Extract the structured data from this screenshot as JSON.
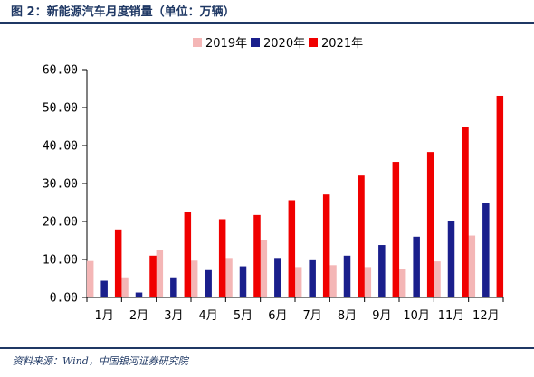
{
  "figure": {
    "title": "图 2：新能源汽车月度销量（单位：万辆）",
    "source": "资料来源：Wind，中国银河证券研究院"
  },
  "colors": {
    "accent": "#1f3864",
    "series": [
      "#f4b6b6",
      "#1a1f8c",
      "#f00000"
    ]
  },
  "chart_data": {
    "type": "bar",
    "title": "",
    "xlabel": "",
    "ylabel": "",
    "ylim": [
      0,
      60
    ],
    "yticks": [
      "0.00",
      "10.00",
      "20.00",
      "30.00",
      "40.00",
      "50.00",
      "60.00"
    ],
    "grid": false,
    "legend": "top",
    "categories": [
      "1月",
      "2月",
      "3月",
      "4月",
      "5月",
      "6月",
      "7月",
      "8月",
      "9月",
      "10月",
      "11月",
      "12月"
    ],
    "series": [
      {
        "name": "2019年",
        "values": [
          9.6,
          5.3,
          12.6,
          9.7,
          10.4,
          15.2,
          8.0,
          8.5,
          8.0,
          7.5,
          9.5,
          16.3
        ]
      },
      {
        "name": "2020年",
        "values": [
          4.4,
          1.3,
          5.3,
          7.2,
          8.2,
          10.4,
          9.8,
          11.0,
          13.8,
          16.0,
          20.0,
          24.8
        ]
      },
      {
        "name": "2021年",
        "values": [
          17.9,
          11.0,
          22.6,
          20.6,
          21.7,
          25.6,
          27.1,
          32.1,
          35.7,
          38.3,
          45.0,
          53.1
        ]
      }
    ]
  }
}
